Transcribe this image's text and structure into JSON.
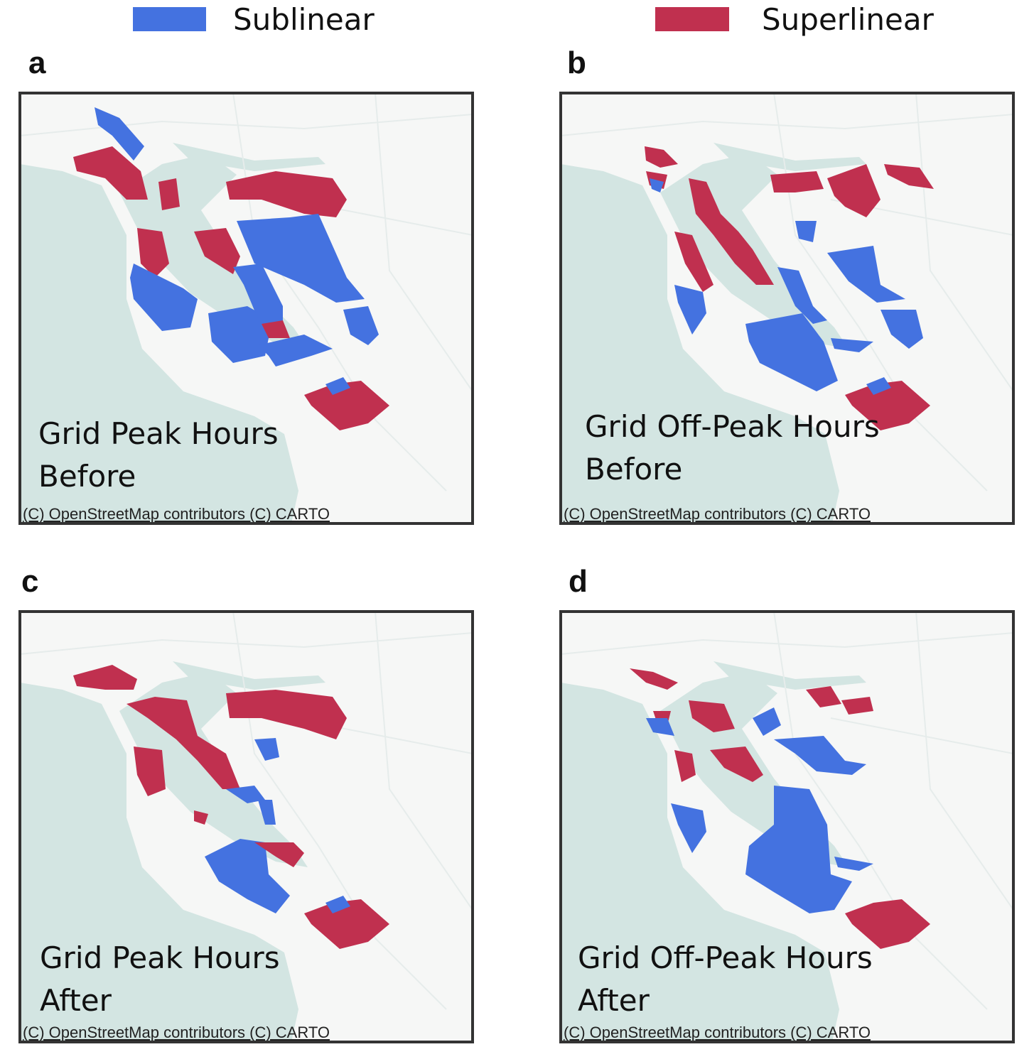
{
  "legend": [
    {
      "label": "Sublinear",
      "color": "#4472e0"
    },
    {
      "label": "Superlinear",
      "color": "#c0304f"
    }
  ],
  "panels": [
    {
      "letter": "a",
      "title_lines": [
        "Grid Peak Hours",
        "Before"
      ],
      "attribution": "(C) OpenStreetMap contributors (C) CARTO"
    },
    {
      "letter": "b",
      "title_lines": [
        "Grid Off-Peak Hours",
        "Before"
      ],
      "attribution": "(C) OpenStreetMap contributors (C) CARTO"
    },
    {
      "letter": "c",
      "title_lines": [
        "Grid Peak Hours",
        "After"
      ],
      "attribution": "(C) OpenStreetMap contributors (C) CARTO"
    },
    {
      "letter": "d",
      "title_lines": [
        "Grid Off-Peak Hours",
        "After"
      ],
      "attribution": "(C) OpenStreetMap contributors (C) CARTO"
    }
  ]
}
